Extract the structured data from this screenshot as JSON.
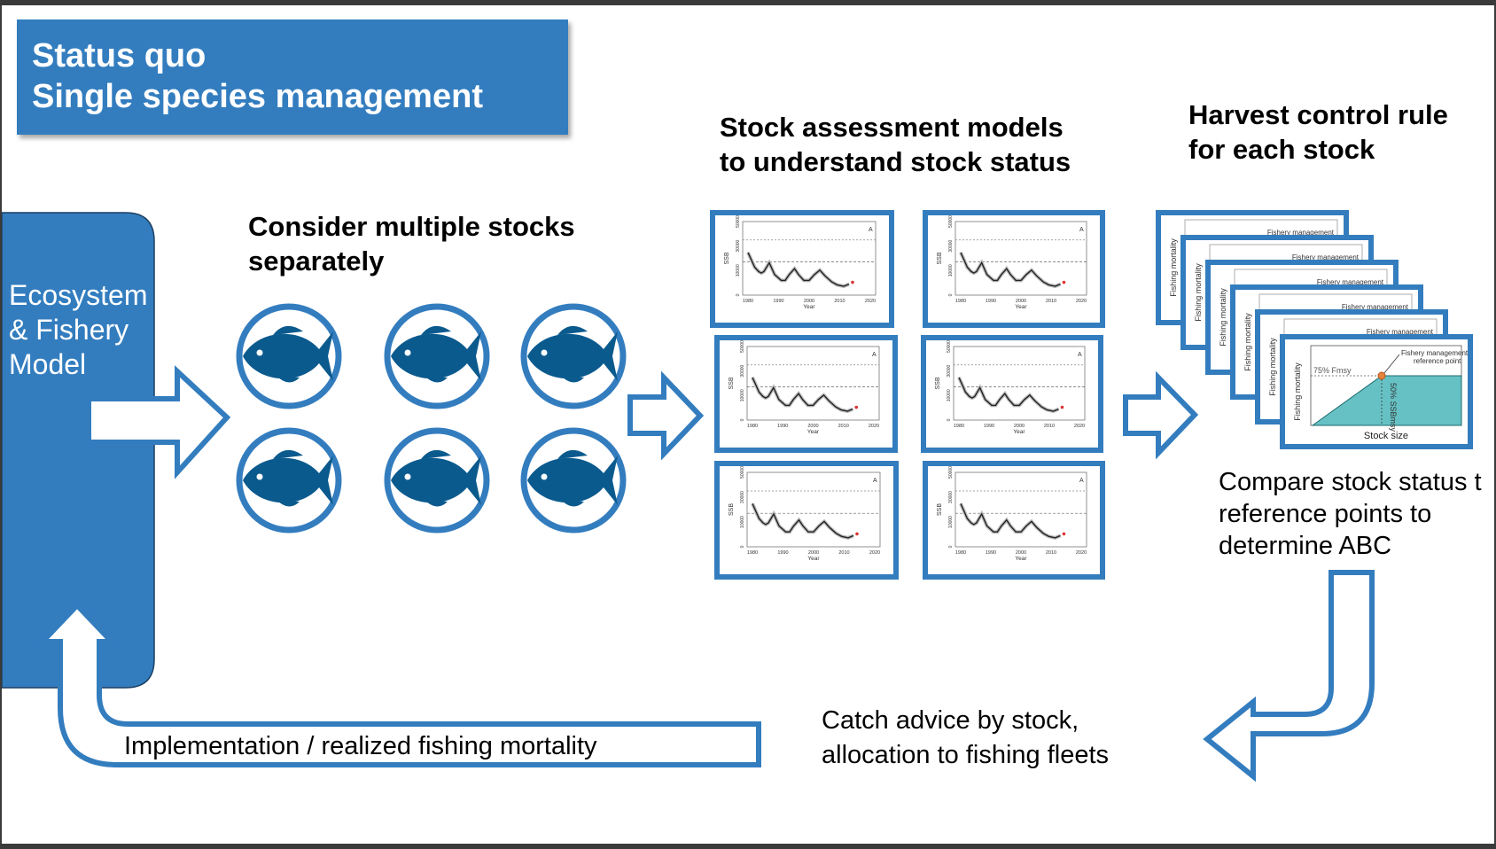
{
  "title": {
    "line1": "Status quo",
    "line2": "Single species management"
  },
  "model": {
    "line1": "Ecosystem",
    "line2": "& Fishery",
    "line3": "Model"
  },
  "stocks_heading": {
    "line1": "Consider multiple stocks",
    "line2": "separately"
  },
  "assessment_heading": {
    "line1": "Stock assessment models",
    "line2": "to understand stock status"
  },
  "hcr_heading": {
    "line1": "Harvest control rule",
    "line2": "for each stock"
  },
  "compare_text": {
    "line1": "Compare stock status t",
    "line2": "reference points to",
    "line3": "determine ABC"
  },
  "catch_text": {
    "line1": "Catch advice by stock,",
    "line2": "allocation to fishing fleets"
  },
  "implementation_text": "Implementation / realized fishing mortality",
  "fish_icon_count": 6,
  "assessment_plot": {
    "ylabel": "SSB",
    "xlabel": "Year",
    "panel_label": "A",
    "y_ticks": [
      "0",
      "10000",
      "30000",
      "50000"
    ],
    "x_ticks": [
      "1980",
      "1990",
      "2000",
      "2010",
      "2020"
    ]
  },
  "hcr_plot": {
    "header_label": "Fishery management",
    "ylabel": "Fishing mortality",
    "xlabel": "Stock size",
    "ref_label_line1": "Fishery management",
    "ref_label_line2": "reference point",
    "fmsy_label": "75% Fmsy",
    "ssb_label": "50% SSBmsy"
  },
  "colors": {
    "primary_blue": "#337dbf",
    "fish_blue": "#0b5a8e",
    "teal": "#66c1c4",
    "ref_point": "#e8823a"
  }
}
